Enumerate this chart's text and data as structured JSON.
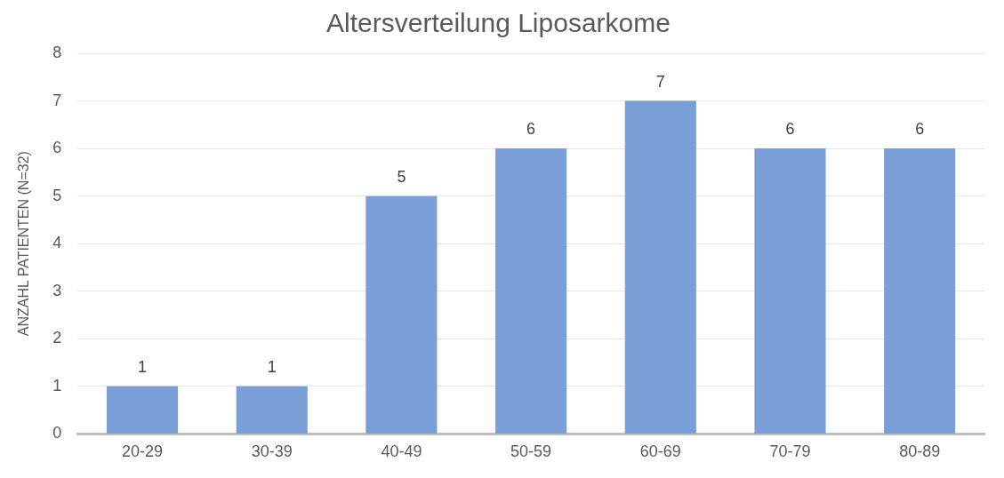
{
  "chart_data": {
    "type": "bar",
    "title": "Altersverteilung Liposarkome",
    "ylabel": "ANZAHL PATIENTEN (N=32)",
    "categories": [
      "20-29",
      "30-39",
      "40-49",
      "50-59",
      "60-69",
      "70-79",
      "80-89"
    ],
    "values": [
      1,
      1,
      5,
      6,
      7,
      6,
      6
    ],
    "color": "#7a9fd6",
    "ylim": [
      0,
      8
    ],
    "yticks": [
      0,
      1,
      2,
      3,
      4,
      5,
      6,
      7,
      8
    ],
    "grid": "y",
    "data_labels": true,
    "legend": false
  }
}
